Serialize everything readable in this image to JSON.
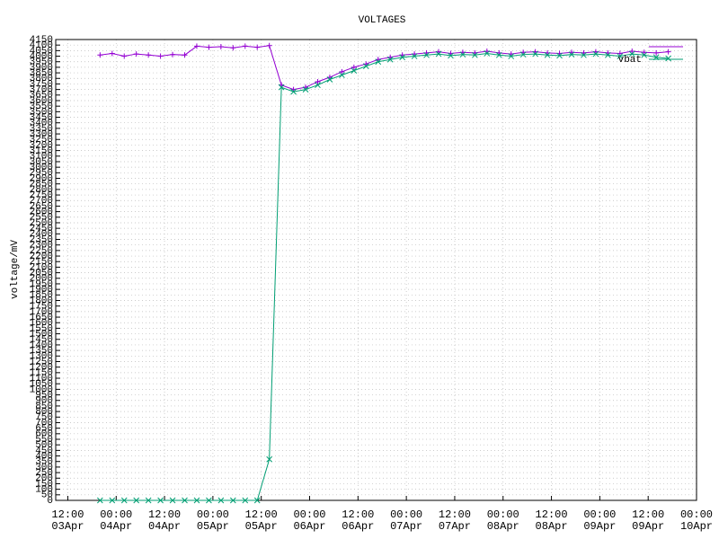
{
  "chart_data": {
    "type": "line",
    "title": "VOLTAGES",
    "y_label": "voltage/mV",
    "xlim": [
      9,
      168
    ],
    "xticks": [
      {
        "value": 12,
        "label": "12:00\n03Apr"
      },
      {
        "value": 24,
        "label": "00:00\n04Apr"
      },
      {
        "value": 36,
        "label": "12:00\n04Apr"
      },
      {
        "value": 48,
        "label": "00:00\n05Apr"
      },
      {
        "value": 60,
        "label": "12:00\n05Apr"
      },
      {
        "value": 72,
        "label": "00:00\n06Apr"
      },
      {
        "value": 84,
        "label": "12:00\n06Apr"
      },
      {
        "value": 96,
        "label": "00:00\n07Apr"
      },
      {
        "value": 108,
        "label": "12:00\n07Apr"
      },
      {
        "value": 120,
        "label": "00:00\n08Apr"
      },
      {
        "value": 132,
        "label": "12:00\n08Apr"
      },
      {
        "value": 144,
        "label": "00:00\n09Apr"
      },
      {
        "value": 156,
        "label": "12:00\n09Apr"
      },
      {
        "value": 168,
        "label": "00:00\n10Apr"
      }
    ],
    "ylim": [
      0,
      4150
    ],
    "yticks": [
      0,
      50,
      100,
      150,
      200,
      250,
      300,
      350,
      400,
      450,
      500,
      550,
      600,
      650,
      700,
      750,
      800,
      850,
      900,
      950,
      1000,
      1050,
      1100,
      1150,
      1200,
      1250,
      1300,
      1350,
      1400,
      1450,
      1500,
      1550,
      1600,
      1650,
      1700,
      1750,
      1800,
      1850,
      1900,
      1950,
      2000,
      2050,
      2100,
      2150,
      2200,
      2250,
      2300,
      2350,
      2400,
      2450,
      2500,
      2550,
      2600,
      2650,
      2700,
      2750,
      2800,
      2850,
      2900,
      2950,
      3000,
      3050,
      3100,
      3150,
      3200,
      3250,
      3300,
      3350,
      3400,
      3450,
      3500,
      3550,
      3600,
      3650,
      3700,
      3750,
      3800,
      3850,
      3900,
      3950,
      4000,
      4050,
      4100,
      4150
    ],
    "grid": true,
    "legend": "top-right",
    "x": [
      20,
      23,
      26,
      29,
      32,
      35,
      38,
      41,
      44,
      47,
      50,
      53,
      56,
      59,
      62,
      65,
      68,
      71,
      74,
      77,
      80,
      83,
      86,
      89,
      92,
      95,
      98,
      101,
      104,
      107,
      110,
      113,
      116,
      119,
      122,
      125,
      128,
      131,
      134,
      137,
      140,
      143,
      146,
      149,
      152,
      155,
      158,
      161
    ],
    "series": [
      {
        "color": "#9400d3",
        "marker": "plus",
        "values": [
          4010,
          4025,
          4000,
          4020,
          4010,
          4000,
          4015,
          4010,
          4090,
          4080,
          4085,
          4075,
          4090,
          4080,
          4095,
          3740,
          3700,
          3720,
          3770,
          3810,
          3860,
          3900,
          3930,
          3970,
          3990,
          4010,
          4020,
          4030,
          4040,
          4025,
          4035,
          4030,
          4045,
          4030,
          4020,
          4035,
          4040,
          4030,
          4025,
          4035,
          4030,
          4040,
          4030,
          4025,
          4045,
          4035,
          4030,
          4040
        ]
      },
      {
        "name": "vbat",
        "color": "#009e73",
        "marker": "cross",
        "values": [
          0,
          0,
          0,
          0,
          0,
          0,
          0,
          0,
          0,
          0,
          0,
          0,
          0,
          0,
          370,
          3720,
          3680,
          3700,
          3740,
          3790,
          3830,
          3870,
          3910,
          3950,
          3970,
          3990,
          4000,
          4010,
          4020,
          4005,
          4015,
          4010,
          4025,
          4010,
          4000,
          4015,
          4020,
          4010,
          4005,
          4015,
          4010,
          4020,
          4010,
          4000,
          4020,
          4010,
          3990,
          3980
        ]
      }
    ]
  }
}
